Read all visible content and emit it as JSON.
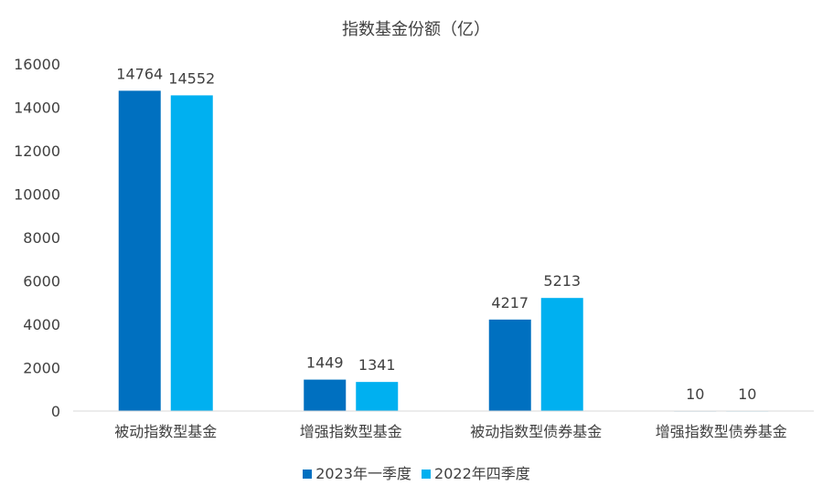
{
  "chart_data": {
    "type": "bar",
    "title": "指数基金份额（亿）",
    "categories": [
      "被动指数型基金",
      "增强指数型基金",
      "被动指数型债券基金",
      "增强指数型债券基金"
    ],
    "series": [
      {
        "name": "2023年一季度",
        "values": [
          14764,
          1449,
          4217,
          10
        ],
        "color": "#0070c0"
      },
      {
        "name": "2022年四季度",
        "values": [
          14552,
          1341,
          5213,
          10
        ],
        "color": "#00b0f0"
      }
    ],
    "ylim": [
      0,
      16000
    ],
    "yticks": [
      0,
      2000,
      4000,
      6000,
      8000,
      10000,
      12000,
      14000,
      16000
    ],
    "grid": false,
    "legend": "bottom"
  }
}
